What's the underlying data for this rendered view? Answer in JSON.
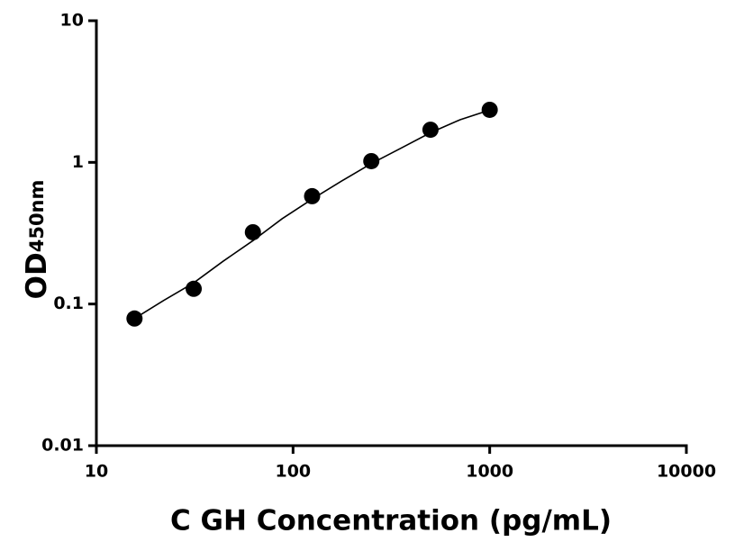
{
  "chart_data": {
    "type": "scatter",
    "x_label": "C GH Concentration (pg/mL)",
    "y_label": "OD",
    "y_label_sub": "450nm",
    "x": [
      15.625,
      31.25,
      62.5,
      125,
      250,
      500,
      1000
    ],
    "values": [
      0.079,
      0.128,
      0.321,
      0.577,
      1.02,
      1.7,
      2.35
    ],
    "color": "#000000",
    "fit": {
      "x": [
        15.625,
        22,
        31.25,
        44,
        62.5,
        88,
        125,
        177,
        250,
        354,
        500,
        707,
        1000
      ],
      "values": [
        0.079,
        0.106,
        0.141,
        0.2,
        0.28,
        0.4,
        0.55,
        0.74,
        0.98,
        1.26,
        1.62,
        2.0,
        2.34
      ]
    },
    "xscale": "log",
    "yscale": "log",
    "xlim": [
      10,
      10000
    ],
    "ylim": [
      0.01,
      10
    ],
    "xticks": [
      10,
      100,
      1000,
      10000
    ],
    "yticks": [
      0.01,
      0.1,
      1,
      10
    ],
    "grid": false
  }
}
